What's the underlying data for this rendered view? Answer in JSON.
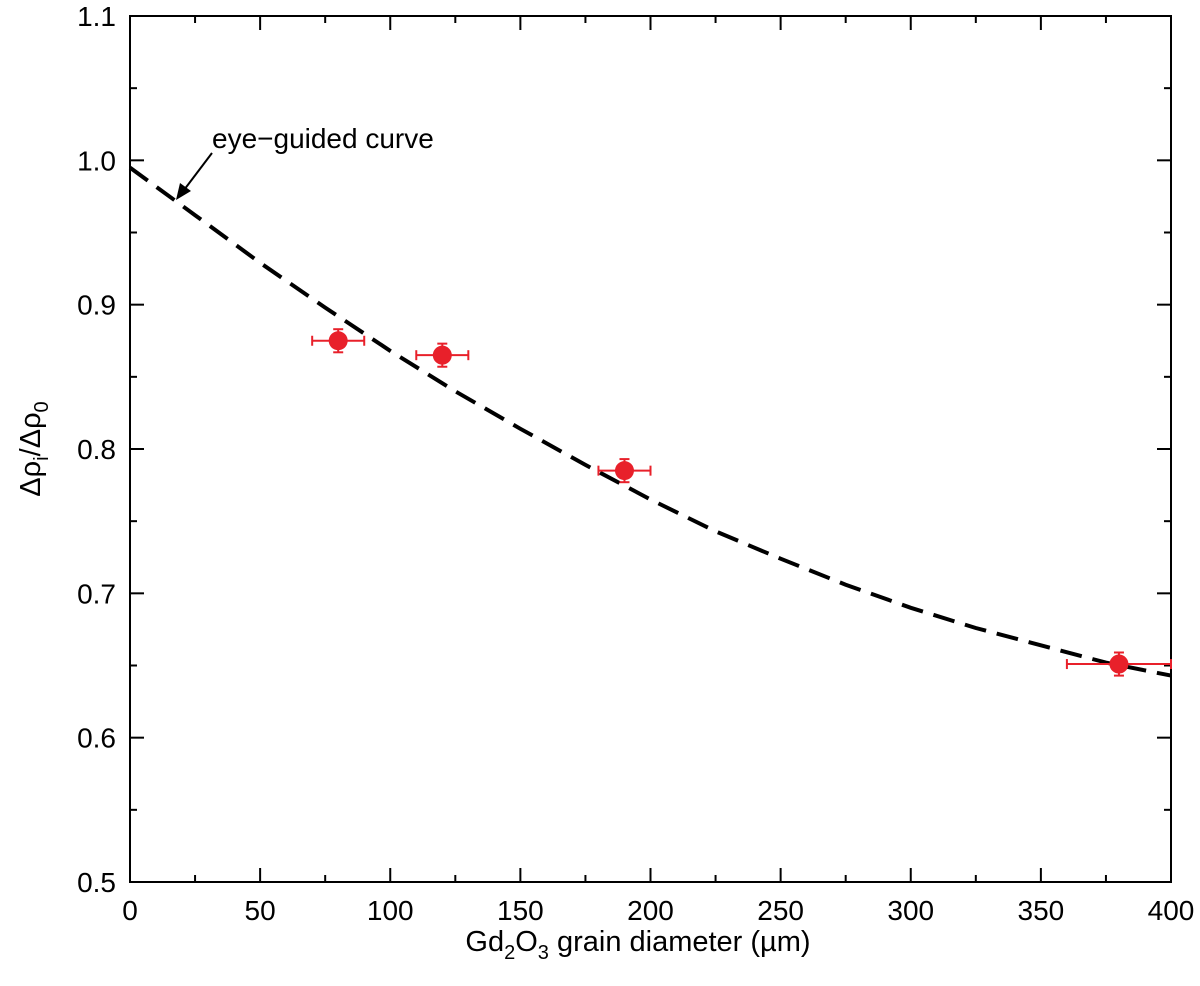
{
  "chart_data": {
    "type": "scatter",
    "xlabel": {
      "prefix": "Gd",
      "sub1": "2",
      "mid": "O",
      "sub2": "3",
      "suffix": " grain diameter (µm)"
    },
    "ylabel": {
      "a": "Δρ",
      "a_sub": "i",
      "slash": "/Δρ",
      "b_sub": "0"
    },
    "xlim": [
      0,
      400
    ],
    "ylim": [
      0.5,
      1.1
    ],
    "x_ticks": [
      0,
      50,
      100,
      150,
      200,
      250,
      300,
      350,
      400
    ],
    "x_tick_labels": [
      "0",
      "50",
      "100",
      "150",
      "200",
      "250",
      "300",
      "350",
      "400"
    ],
    "y_ticks": [
      0.5,
      0.6,
      0.7,
      0.8,
      0.9,
      1.0,
      1.1
    ],
    "y_tick_labels": [
      "0.5",
      "0.6",
      "0.7",
      "0.8",
      "0.9",
      "1.0",
      "1.1"
    ],
    "grid": false,
    "series": [
      {
        "style": "markers with error bars",
        "color": "#e8202a",
        "points": [
          {
            "x": 80,
            "y": 0.875,
            "xerr": 10,
            "yerr": 0.008
          },
          {
            "x": 120,
            "y": 0.865,
            "xerr": 10,
            "yerr": 0.008
          },
          {
            "x": 190,
            "y": 0.785,
            "xerr": 10,
            "yerr": 0.008
          },
          {
            "x": 380,
            "y": 0.651,
            "xerr": 20,
            "yerr": 0.008
          }
        ]
      },
      {
        "style": "dashed line",
        "color": "#000000",
        "x": [
          0,
          25,
          50,
          75,
          100,
          125,
          150,
          175,
          200,
          225,
          250,
          275,
          300,
          325,
          350,
          375,
          400
        ],
        "y": [
          0.995,
          0.962,
          0.929,
          0.898,
          0.868,
          0.84,
          0.814,
          0.789,
          0.765,
          0.743,
          0.724,
          0.706,
          0.69,
          0.676,
          0.664,
          0.652,
          0.643
        ]
      }
    ],
    "annotations": [
      {
        "text": "eye−guided curve",
        "x": 19,
        "y": 0.967
      }
    ]
  }
}
